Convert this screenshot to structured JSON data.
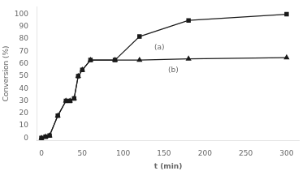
{
  "chart_data": {
    "type": "line",
    "x_label": "t (min)",
    "y_label": "Conversion (%)",
    "series": [
      {
        "x": [
          0,
          5,
          10,
          20,
          30,
          35,
          40,
          45,
          50,
          60,
          90,
          120,
          180,
          300
        ],
        "values": [
          0,
          1,
          2,
          18,
          30,
          30,
          32,
          50,
          55,
          63,
          63,
          82,
          95,
          100
        ],
        "color": "#1a1a1a",
        "marker": "square",
        "line_style": "solid"
      },
      {
        "x": [
          0,
          5,
          10,
          20,
          30,
          35,
          40,
          45,
          50,
          60,
          90,
          120,
          180,
          300
        ],
        "values": [
          0,
          1,
          2,
          18,
          30,
          30,
          32,
          50,
          55,
          63,
          63,
          63,
          64,
          65
        ],
        "color": "#1a1a1a",
        "marker": "triangle",
        "line_style": "solid"
      }
    ],
    "annotations": [
      {
        "text": "(a)",
        "x": 138,
        "y": 73
      },
      {
        "text": "(b)",
        "x": 155,
        "y": 55
      }
    ],
    "xlim": [
      -5,
      315
    ],
    "xticks": [
      0,
      50,
      100,
      150,
      200,
      250,
      300
    ],
    "ylim": [
      -2,
      106
    ],
    "yticks": [
      0,
      10,
      20,
      30,
      40,
      50,
      60,
      70,
      80,
      90,
      100
    ],
    "grid": false
  }
}
